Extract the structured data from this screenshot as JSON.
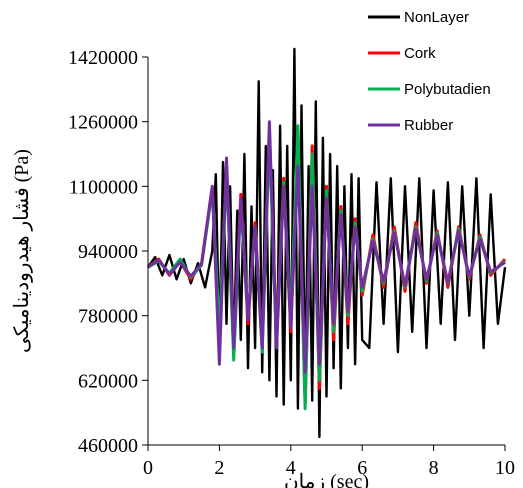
{
  "chart_data": {
    "type": "line",
    "xlabel": "زمان (sec)",
    "ylabel": "فشار هیدرودینامیکی (Pa)",
    "xlim": [
      0,
      10
    ],
    "ylim": [
      460000,
      1420000
    ],
    "x_ticks": [
      "0",
      "2",
      "4",
      "6",
      "8",
      "10"
    ],
    "y_ticks": [
      "460000",
      "620000",
      "780000",
      "940000",
      "1100000",
      "1260000",
      "1420000"
    ],
    "grid": false,
    "legend_position": "top-right",
    "series": [
      {
        "name": "NonLayer",
        "color": "#000000",
        "x": [
          0.0,
          0.2,
          0.4,
          0.6,
          0.8,
          1.0,
          1.2,
          1.4,
          1.6,
          1.8,
          1.9,
          2.0,
          2.1,
          2.2,
          2.3,
          2.4,
          2.5,
          2.6,
          2.7,
          2.8,
          2.9,
          3.0,
          3.1,
          3.2,
          3.3,
          3.4,
          3.5,
          3.6,
          3.7,
          3.8,
          3.9,
          4.0,
          4.1,
          4.2,
          4.3,
          4.4,
          4.5,
          4.6,
          4.7,
          4.8,
          4.9,
          5.0,
          5.1,
          5.2,
          5.3,
          5.4,
          5.5,
          5.6,
          5.7,
          5.8,
          5.9,
          6.0,
          6.2,
          6.4,
          6.6,
          6.8,
          7.0,
          7.2,
          7.4,
          7.6,
          7.8,
          8.0,
          8.2,
          8.4,
          8.6,
          8.8,
          9.0,
          9.2,
          9.4,
          9.6,
          9.8,
          10.0
        ],
        "y": [
          900000,
          925000,
          880000,
          930000,
          870000,
          920000,
          860000,
          910000,
          850000,
          940000,
          1130000,
          700000,
          1160000,
          760000,
          1100000,
          690000,
          1040000,
          720000,
          1180000,
          650000,
          1050000,
          700000,
          1360000,
          640000,
          1200000,
          620000,
          1140000,
          580000,
          1250000,
          560000,
          1200000,
          620000,
          1440000,
          550000,
          1300000,
          600000,
          1150000,
          570000,
          1310000,
          480000,
          1220000,
          580000,
          1180000,
          650000,
          1150000,
          600000,
          1100000,
          700000,
          1130000,
          660000,
          1120000,
          720000,
          700000,
          1110000,
          760000,
          1120000,
          690000,
          1100000,
          740000,
          1120000,
          700000,
          1090000,
          760000,
          1110000,
          720000,
          1100000,
          780000,
          1120000,
          700000,
          1080000,
          760000,
          900000
        ]
      },
      {
        "name": "Cork",
        "color": "#ff0000",
        "x": [
          0.0,
          0.3,
          0.6,
          0.9,
          1.2,
          1.5,
          1.8,
          2.0,
          2.2,
          2.4,
          2.6,
          2.8,
          3.0,
          3.2,
          3.4,
          3.6,
          3.8,
          4.0,
          4.2,
          4.4,
          4.6,
          4.8,
          5.0,
          5.2,
          5.4,
          5.6,
          5.8,
          6.0,
          6.3,
          6.6,
          6.9,
          7.2,
          7.5,
          7.8,
          8.1,
          8.4,
          8.7,
          9.0,
          9.3,
          9.6,
          10.0
        ],
        "y": [
          900000,
          920000,
          880000,
          915000,
          870000,
          910000,
          1100000,
          720000,
          1150000,
          690000,
          1080000,
          760000,
          1010000,
          700000,
          1240000,
          720000,
          1120000,
          740000,
          1230000,
          560000,
          1200000,
          600000,
          1100000,
          720000,
          1050000,
          760000,
          1020000,
          830000,
          980000,
          850000,
          1000000,
          840000,
          1010000,
          860000,
          990000,
          850000,
          1000000,
          870000,
          980000,
          880000,
          920000
        ]
      },
      {
        "name": "Polybutadien",
        "color": "#00b050",
        "x": [
          0.0,
          0.3,
          0.6,
          0.9,
          1.2,
          1.5,
          1.8,
          2.0,
          2.2,
          2.4,
          2.6,
          2.8,
          3.0,
          3.2,
          3.4,
          3.6,
          3.8,
          4.0,
          4.2,
          4.4,
          4.6,
          4.8,
          5.0,
          5.2,
          5.4,
          5.6,
          5.8,
          6.0,
          6.3,
          6.6,
          6.9,
          7.2,
          7.5,
          7.8,
          8.1,
          8.4,
          8.7,
          9.0,
          9.3,
          9.6,
          10.0
        ],
        "y": [
          900000,
          915000,
          885000,
          920000,
          875000,
          905000,
          1090000,
          740000,
          1140000,
          670000,
          1060000,
          780000,
          1000000,
          690000,
          1220000,
          710000,
          1110000,
          760000,
          1250000,
          550000,
          1180000,
          620000,
          1090000,
          740000,
          1040000,
          780000,
          1010000,
          840000,
          970000,
          860000,
          990000,
          850000,
          1000000,
          865000,
          985000,
          860000,
          995000,
          875000,
          975000,
          885000,
          915000
        ]
      },
      {
        "name": "Rubber",
        "color": "#7030a0",
        "x": [
          0.0,
          0.3,
          0.6,
          0.9,
          1.2,
          1.5,
          1.8,
          2.0,
          2.2,
          2.4,
          2.6,
          2.8,
          3.0,
          3.2,
          3.4,
          3.6,
          3.8,
          4.0,
          4.2,
          4.4,
          4.6,
          4.8,
          5.0,
          5.2,
          5.4,
          5.6,
          5.8,
          6.0,
          6.3,
          6.6,
          6.9,
          7.2,
          7.5,
          7.8,
          8.1,
          8.4,
          8.7,
          9.0,
          9.3,
          9.6,
          10.0
        ],
        "y": [
          900000,
          918000,
          882000,
          912000,
          878000,
          908000,
          1100000,
          660000,
          1170000,
          700000,
          1070000,
          770000,
          1000000,
          700000,
          1260000,
          700000,
          1100000,
          750000,
          1150000,
          640000,
          1100000,
          660000,
          1070000,
          760000,
          1030000,
          790000,
          1000000,
          850000,
          965000,
          865000,
          985000,
          855000,
          995000,
          870000,
          980000,
          862000,
          990000,
          878000,
          970000,
          888000,
          912000
        ]
      }
    ]
  }
}
